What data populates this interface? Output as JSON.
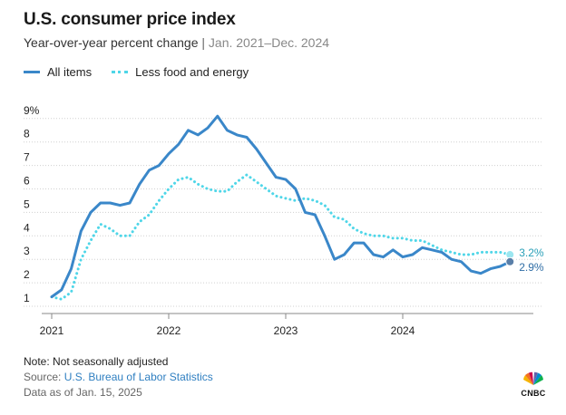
{
  "title": "U.S. consumer price index",
  "subtitle_main": "Year-over-year percent change",
  "subtitle_sep": "|",
  "subtitle_range": "Jan. 2021–Dec. 2024",
  "legend": {
    "all_items": "All items",
    "core": "Less food and energy"
  },
  "note": "Note: Not seasonally adjusted",
  "source_prefix": "Source: ",
  "source_link": "U.S. Bureau of Labor Statistics",
  "as_of": "Data as of Jan. 15, 2025",
  "logo_text": "CNBC",
  "end_labels": {
    "core": "3.2%",
    "all": "2.9%"
  },
  "colors": {
    "all_items": "#3a87c9",
    "core": "#4fd6e8",
    "grid": "#d0d0d0"
  },
  "chart_data": {
    "type": "line",
    "title": "U.S. consumer price index",
    "subtitle": "Year-over-year percent change | Jan. 2021–Dec. 2024",
    "x_start": "2021-01",
    "x_end": "2024-12",
    "x_ticks": [
      "2021",
      "2022",
      "2023",
      "2024"
    ],
    "y_ticks": [
      "1",
      "2",
      "3",
      "4",
      "5",
      "6",
      "7",
      "8",
      "9%"
    ],
    "ylim": [
      1,
      9
    ],
    "grid": true,
    "legend_position": "top-left",
    "series": [
      {
        "name": "All items",
        "values": [
          1.4,
          1.7,
          2.6,
          4.2,
          5.0,
          5.4,
          5.4,
          5.3,
          5.4,
          6.2,
          6.8,
          7.0,
          7.5,
          7.9,
          8.5,
          8.3,
          8.6,
          9.1,
          8.5,
          8.3,
          8.2,
          7.7,
          7.1,
          6.5,
          6.4,
          6.0,
          5.0,
          4.9,
          4.0,
          3.0,
          3.2,
          3.7,
          3.7,
          3.2,
          3.1,
          3.4,
          3.1,
          3.2,
          3.5,
          3.4,
          3.3,
          3.0,
          2.9,
          2.5,
          2.4,
          2.6,
          2.7,
          2.9
        ]
      },
      {
        "name": "Less food and energy",
        "values": [
          1.4,
          1.3,
          1.6,
          3.0,
          3.8,
          4.5,
          4.3,
          4.0,
          4.0,
          4.6,
          4.9,
          5.5,
          6.0,
          6.4,
          6.5,
          6.2,
          6.0,
          5.9,
          5.9,
          6.3,
          6.6,
          6.3,
          6.0,
          5.7,
          5.6,
          5.5,
          5.6,
          5.5,
          5.3,
          4.8,
          4.7,
          4.3,
          4.1,
          4.0,
          4.0,
          3.9,
          3.9,
          3.8,
          3.8,
          3.6,
          3.4,
          3.3,
          3.2,
          3.2,
          3.3,
          3.3,
          3.3,
          3.2
        ]
      }
    ]
  }
}
